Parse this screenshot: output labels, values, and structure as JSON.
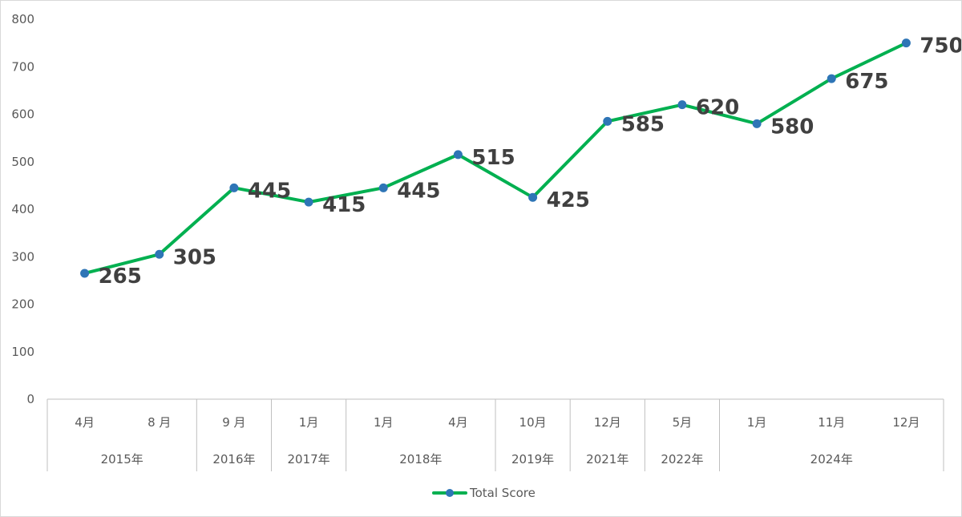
{
  "chart_data": {
    "type": "line",
    "title": "",
    "xlabel": "",
    "ylabel": "",
    "ylim": [
      0,
      800
    ],
    "y_ticks": [
      0,
      100,
      200,
      300,
      400,
      500,
      600,
      700,
      800
    ],
    "gridlines": false,
    "legend_position": "bottom",
    "categories": [
      "4月",
      "8 月",
      "9 月",
      "1月",
      "1月",
      "4月",
      "10月",
      "12月",
      "5月",
      "1月",
      "11月",
      "12月"
    ],
    "groups": [
      {
        "label": "2015年",
        "count": 2
      },
      {
        "label": "2016年",
        "count": 1
      },
      {
        "label": "2017年",
        "count": 1
      },
      {
        "label": "2018年",
        "count": 2
      },
      {
        "label": "2019年",
        "count": 1
      },
      {
        "label": "2021年",
        "count": 1
      },
      {
        "label": "2022年",
        "count": 1
      },
      {
        "label": "2024年",
        "count": 3
      }
    ],
    "series": [
      {
        "name": "Total Score",
        "color": "#00b050",
        "marker_color": "#2e75b6",
        "values": [
          265,
          305,
          445,
          415,
          445,
          515,
          425,
          585,
          620,
          580,
          675,
          750
        ]
      }
    ]
  }
}
